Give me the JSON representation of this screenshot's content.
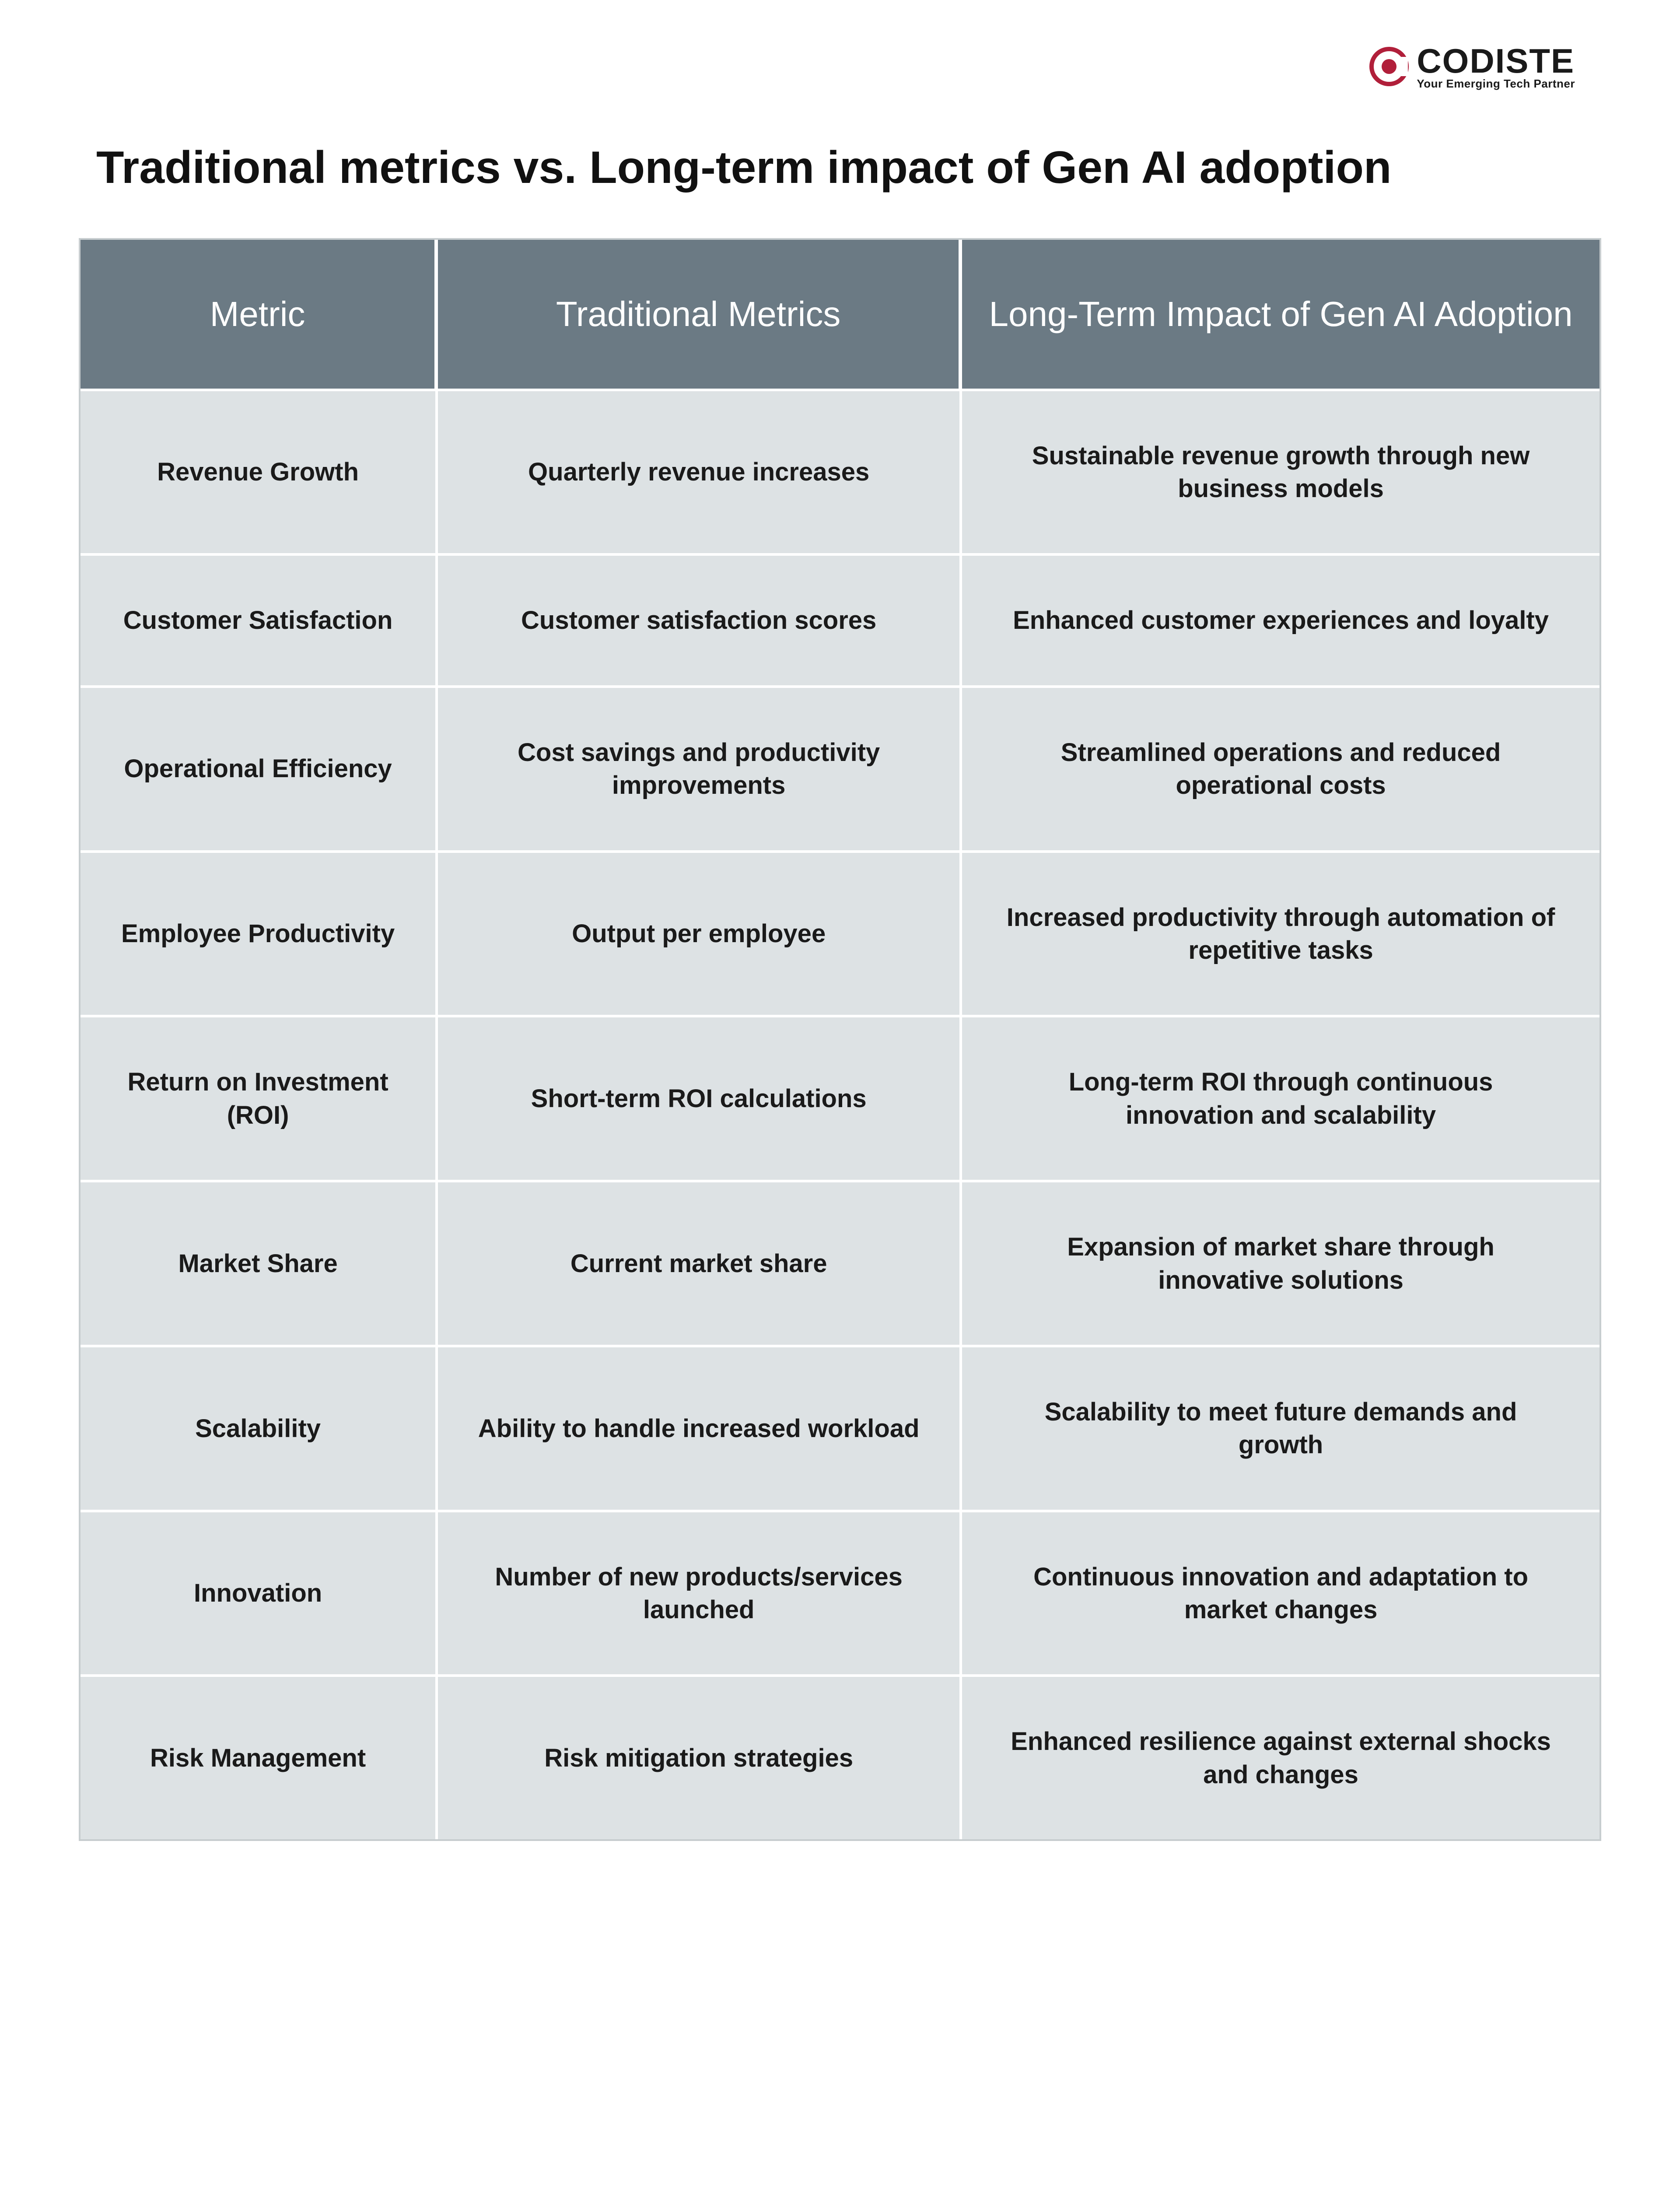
{
  "brand": {
    "name": "CODISTE",
    "tagline": "Your Emerging Tech Partner",
    "accent_color": "#b11f3a"
  },
  "title": "Traditional metrics vs. Long-term impact of Gen AI adoption",
  "table": {
    "type": "table",
    "header_bg": "#6b7a84",
    "header_fg": "#ffffff",
    "cell_bg": "#dde2e4",
    "cell_fg": "#1a1a1a",
    "border_color": "#ffffff",
    "outer_border_color": "#c7cdcf",
    "header_fontsize_pt": 60,
    "cell_fontsize_pt": 44,
    "columns": [
      "Metric",
      "Traditional Metrics",
      "Long-Term Impact of Gen AI Adoption"
    ],
    "rows": [
      [
        "Revenue Growth",
        "Quarterly revenue increases",
        "Sustainable revenue growth through new business models"
      ],
      [
        "Customer Satisfaction",
        "Customer satisfaction scores",
        "Enhanced customer experiences and loyalty"
      ],
      [
        "Operational Efficiency",
        "Cost savings and productivity improvements",
        "Streamlined operations and reduced operational costs"
      ],
      [
        "Employee Productivity",
        "Output per employee",
        "Increased productivity through automation of repetitive tasks"
      ],
      [
        "Return on Investment (ROI)",
        "Short-term ROI calculations",
        "Long-term ROI through continuous innovation and scalability"
      ],
      [
        "Market Share",
        "Current market share",
        "Expansion of market share through innovative solutions"
      ],
      [
        "Scalability",
        "Ability to handle increased workload",
        "Scalability to meet future demands and growth"
      ],
      [
        "Innovation",
        "Number of new products/services launched",
        "Continuous innovation and adaptation to market changes"
      ],
      [
        "Risk Management",
        "Risk mitigation strategies",
        "Enhanced resilience against external shocks and changes"
      ]
    ]
  }
}
